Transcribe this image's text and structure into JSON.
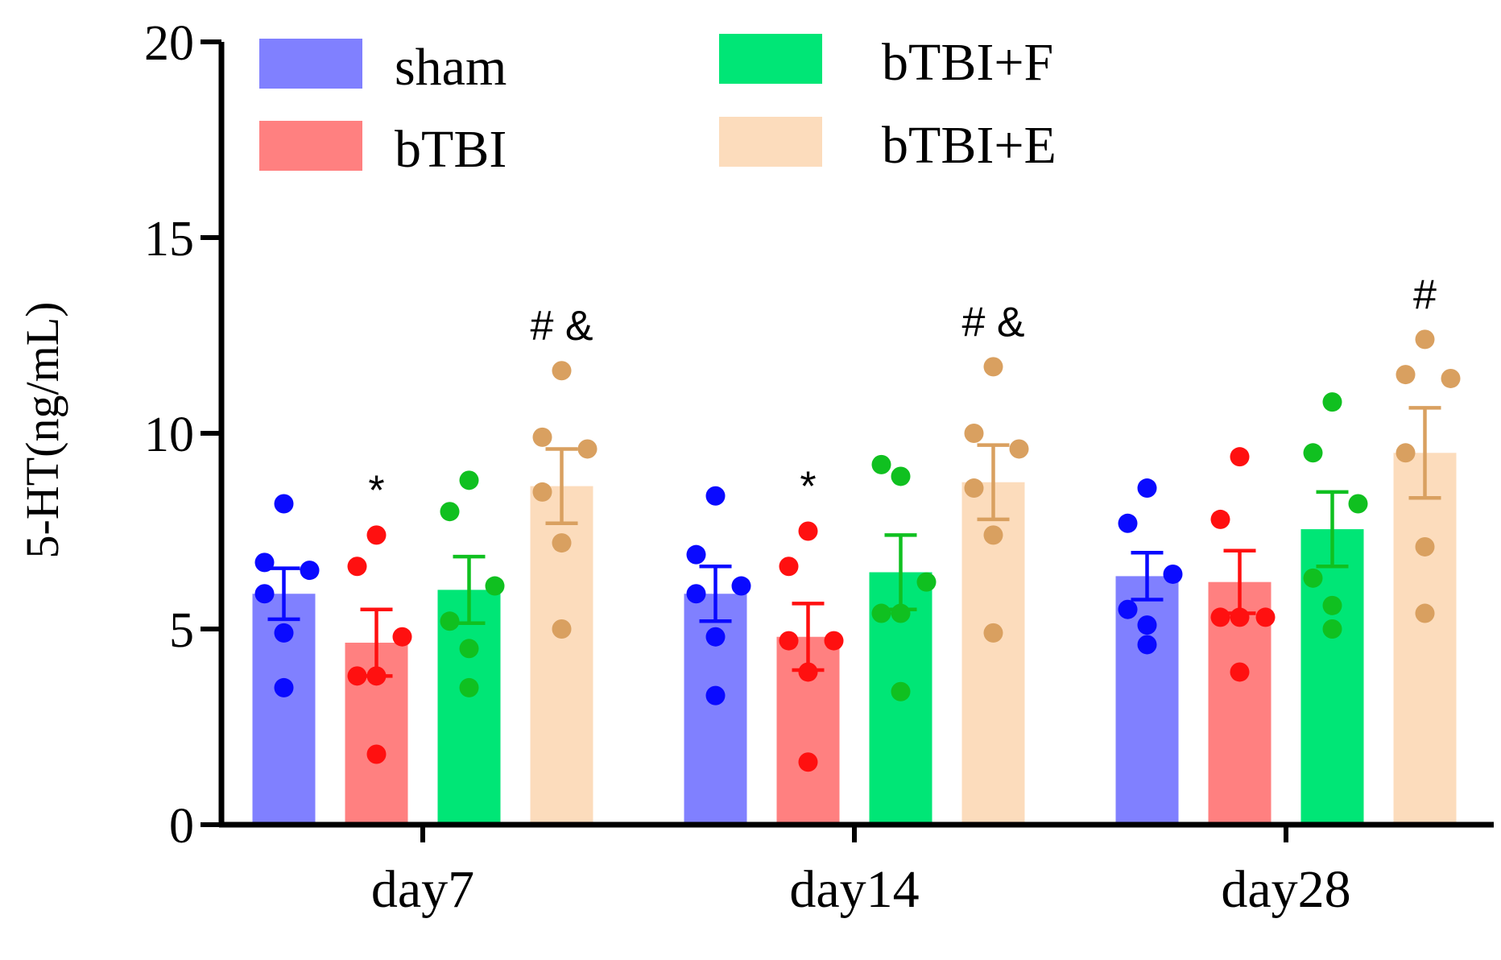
{
  "chart_data": {
    "type": "bar",
    "title": "",
    "xlabel": "",
    "ylabel": "5-HT(ng/mL)",
    "ylim": [
      0,
      20
    ],
    "yticks": [
      0,
      5,
      10,
      15,
      20
    ],
    "grid": false,
    "legend_position": "top-left",
    "categories": [
      "day7",
      "day14",
      "day28"
    ],
    "series": [
      {
        "name": "sham",
        "color": "#8080ff",
        "point_color": "#0a0aff",
        "values": [
          5.9,
          5.9,
          6.35
        ],
        "sem": [
          0.65,
          0.7,
          0.6
        ],
        "points": [
          [
            8.2,
            6.7,
            6.5,
            5.9,
            4.9,
            3.5
          ],
          [
            8.4,
            6.9,
            6.1,
            5.9,
            4.8,
            3.3
          ],
          [
            8.6,
            7.7,
            6.4,
            5.5,
            5.1,
            4.6
          ]
        ],
        "annotations": [
          "",
          "",
          ""
        ]
      },
      {
        "name": "bTBI",
        "color": "#ff8080",
        "point_color": "#ff1010",
        "values": [
          4.65,
          4.8,
          6.2
        ],
        "sem": [
          0.85,
          0.85,
          0.8
        ],
        "points": [
          [
            7.4,
            6.6,
            4.8,
            3.8,
            3.8,
            1.8
          ],
          [
            7.5,
            6.6,
            4.7,
            4.7,
            3.9,
            1.6
          ],
          [
            9.4,
            7.8,
            5.3,
            5.3,
            5.3,
            3.9
          ]
        ],
        "annotations": [
          "*",
          "*",
          ""
        ]
      },
      {
        "name": "bTBI+F",
        "color": "#00e676",
        "point_color": "#10c020",
        "values": [
          6.0,
          6.45,
          7.55
        ],
        "sem": [
          0.85,
          0.95,
          0.95
        ],
        "points": [
          [
            8.8,
            8.0,
            6.1,
            5.2,
            4.5,
            3.5
          ],
          [
            8.9,
            9.2,
            6.2,
            5.4,
            5.4,
            3.4
          ],
          [
            10.8,
            9.5,
            8.2,
            6.3,
            5.6,
            5.0
          ]
        ],
        "annotations": [
          "",
          "",
          ""
        ]
      },
      {
        "name": "bTBI+E",
        "color": "#fcdcbc",
        "point_color": "#d9a060",
        "values": [
          8.65,
          8.75,
          9.5
        ],
        "sem": [
          0.95,
          0.95,
          1.15
        ],
        "points": [
          [
            11.6,
            9.9,
            9.6,
            8.5,
            7.2,
            5.0
          ],
          [
            11.7,
            10.0,
            9.6,
            8.6,
            7.4,
            4.9
          ],
          [
            12.4,
            11.5,
            11.4,
            9.5,
            7.1,
            5.4
          ]
        ],
        "annotations": [
          "# &",
          "# &",
          "#"
        ]
      }
    ]
  }
}
